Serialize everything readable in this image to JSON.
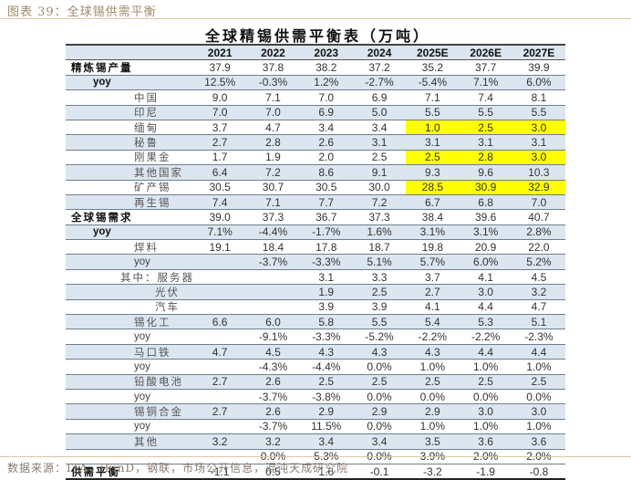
{
  "figure_title": "图表 39：全球锡供需平衡",
  "table_title": "全球精锡供需平衡表（万吨）",
  "source": "数据来源：ITA，iFinD，钢联，市场公开信息，混沌天成研究院",
  "highlight_color": "#ffff00",
  "band_color": "#dce6f1",
  "columns": [
    "",
    "2021",
    "2022",
    "2023",
    "2024",
    "2025E",
    "2026E",
    "2027E"
  ],
  "rows": [
    {
      "label": "精炼锡产量",
      "values": [
        "37.9",
        "37.8",
        "38.2",
        "37.2",
        "35.2",
        "37.7",
        "39.9"
      ]
    },
    {
      "label": "yoy",
      "values": [
        "12.5%",
        "-0.3%",
        "1.2%",
        "-2.7%",
        "-5.4%",
        "7.1%",
        "6.0%"
      ]
    },
    {
      "label": "中国",
      "values": [
        "9.0",
        "7.1",
        "7.0",
        "6.9",
        "7.1",
        "7.4",
        "8.1"
      ]
    },
    {
      "label": "印尼",
      "values": [
        "7.0",
        "7.0",
        "6.9",
        "5.0",
        "5.5",
        "5.5",
        "5.5"
      ]
    },
    {
      "label": "缅甸",
      "values": [
        "3.7",
        "4.7",
        "3.4",
        "3.4",
        "1.0",
        "2.5",
        "3.0"
      ]
    },
    {
      "label": "秘鲁",
      "values": [
        "2.7",
        "2.8",
        "2.6",
        "3.1",
        "3.1",
        "3.1",
        "3.1"
      ]
    },
    {
      "label": "刚果金",
      "values": [
        "1.7",
        "1.9",
        "2.0",
        "2.5",
        "2.5",
        "2.8",
        "3.0"
      ]
    },
    {
      "label": "其他国家",
      "values": [
        "6.4",
        "7.2",
        "8.6",
        "9.1",
        "9.3",
        "9.6",
        "10.3"
      ]
    },
    {
      "label": "矿产锡",
      "values": [
        "30.5",
        "30.7",
        "30.5",
        "30.0",
        "28.5",
        "30.9",
        "32.9"
      ]
    },
    {
      "label": "再生锡",
      "values": [
        "7.4",
        "7.1",
        "7.7",
        "7.2",
        "6.7",
        "6.8",
        "7.0"
      ]
    },
    {
      "label": "全球锡需求",
      "values": [
        "39.0",
        "37.3",
        "36.7",
        "37.3",
        "38.4",
        "39.6",
        "40.7"
      ]
    },
    {
      "label": "yoy",
      "values": [
        "7.1%",
        "-4.4%",
        "-1.7%",
        "1.6%",
        "3.1%",
        "3.1%",
        "2.8%"
      ]
    },
    {
      "label": "焊料",
      "values": [
        "19.1",
        "18.4",
        "17.8",
        "18.7",
        "19.8",
        "20.9",
        "22.0"
      ]
    },
    {
      "label": "yoy",
      "values": [
        "",
        "-3.7%",
        "-3.3%",
        "5.1%",
        "5.7%",
        "6.0%",
        "5.2%"
      ]
    },
    {
      "label": "其中：服务器",
      "values": [
        "",
        "",
        "3.1",
        "3.3",
        "3.7",
        "4.1",
        "4.5"
      ]
    },
    {
      "label": "光伏",
      "values": [
        "",
        "",
        "1.9",
        "2.5",
        "2.7",
        "3.0",
        "3.2"
      ]
    },
    {
      "label": "汽车",
      "values": [
        "",
        "",
        "3.9",
        "3.9",
        "4.1",
        "4.4",
        "4.7"
      ]
    },
    {
      "label": "锡化工",
      "values": [
        "6.6",
        "6.0",
        "5.8",
        "5.5",
        "5.4",
        "5.3",
        "5.1"
      ]
    },
    {
      "label": "yoy",
      "values": [
        "",
        "-9.1%",
        "-3.3%",
        "-5.2%",
        "-2.2%",
        "-2.2%",
        "-2.3%"
      ]
    },
    {
      "label": "马口铁",
      "values": [
        "4.7",
        "4.5",
        "4.3",
        "4.3",
        "4.3",
        "4.4",
        "4.4"
      ]
    },
    {
      "label": "yoy",
      "values": [
        "",
        "-4.3%",
        "-4.4%",
        "0.0%",
        "1.0%",
        "1.0%",
        "1.0%"
      ]
    },
    {
      "label": "铅酸电池",
      "values": [
        "2.7",
        "2.6",
        "2.5",
        "2.5",
        "2.5",
        "2.5",
        "2.5"
      ]
    },
    {
      "label": "yoy",
      "values": [
        "",
        "-3.7%",
        "-3.8%",
        "0.0%",
        "0.0%",
        "0.0%",
        "0.0%"
      ]
    },
    {
      "label": "锡铜合金",
      "values": [
        "2.7",
        "2.6",
        "2.9",
        "2.9",
        "2.9",
        "3.0",
        "3.0"
      ]
    },
    {
      "label": "yoy",
      "values": [
        "",
        "-3.7%",
        "11.5%",
        "0.0%",
        "1.0%",
        "1.0%",
        "1.0%"
      ]
    },
    {
      "label": "其他",
      "values": [
        "3.2",
        "3.2",
        "3.4",
        "3.4",
        "3.5",
        "3.6",
        "3.6"
      ]
    },
    {
      "label": "",
      "values": [
        "",
        "0.0%",
        "5.3%",
        "0.0%",
        "3.9%",
        "2.0%",
        "2.0%"
      ]
    },
    {
      "label": "供需平衡",
      "values": [
        "-1.1",
        "0.5",
        "1.6",
        "-0.1",
        "-3.2",
        "-1.9",
        "-0.8"
      ]
    }
  ],
  "chart_data": {
    "type": "table",
    "title": "全球精锡供需平衡表（万吨）",
    "unit": "万吨",
    "columns": [
      "2021",
      "2022",
      "2023",
      "2024",
      "2025E",
      "2026E",
      "2027E"
    ],
    "highlighted_cells": [
      {
        "row": "缅甸",
        "columns": [
          "2025E",
          "2026E",
          "2027E"
        ]
      },
      {
        "row": "刚果金",
        "columns": [
          "2025E",
          "2026E",
          "2027E"
        ]
      },
      {
        "row": "矿产锡",
        "columns": [
          "2025E",
          "2026E",
          "2027E"
        ]
      }
    ]
  }
}
